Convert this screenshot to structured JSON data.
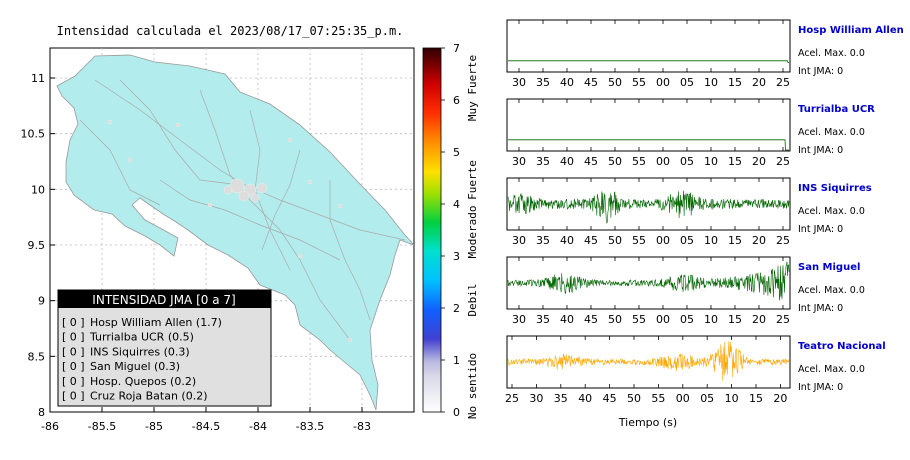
{
  "map": {
    "title": "Intensidad calculada el 2023/08/17_07:25:35_p.m.",
    "lon_ticks": [
      "-86",
      "-85.5",
      "-85",
      "-84.5",
      "-84",
      "-83.5",
      "-83"
    ],
    "lat_ticks": [
      "11",
      "10.5",
      "10",
      "9.5",
      "9",
      "8.5",
      "8"
    ],
    "land_color": "#b3ecec",
    "legend": {
      "title": "INTENSIDAD JMA [0 a 7]",
      "items": [
        {
          "level": "[ 0 ]",
          "label": "Hosp William Allen (1.7)"
        },
        {
          "level": "[ 0 ]",
          "label": "Turrialba UCR (0.5)"
        },
        {
          "level": "[ 0 ]",
          "label": "INS Siquirres (0.3)"
        },
        {
          "level": "[ 0 ]",
          "label": "San Miguel (0.3)"
        },
        {
          "level": "[ 0 ]",
          "label": "Hosp. Quepos (0.2)"
        },
        {
          "level": "[ 0 ]",
          "label": "Cruz Roja Batan (0.2)"
        }
      ]
    }
  },
  "colorbar": {
    "ticks": [
      "7",
      "6",
      "5",
      "4",
      "3",
      "2",
      "1",
      "0"
    ],
    "labels": [
      "Muy Fuerte",
      "Fuerte",
      "Moderado",
      "Debil",
      "No sentido"
    ]
  },
  "chart_data": [
    {
      "type": "line",
      "station": "Hosp William Allen",
      "acel_label": "Acel. Max. 0.0",
      "int_label": "Int JMA: 0",
      "x_ticks": [
        "30",
        "35",
        "40",
        "45",
        "50",
        "55",
        "00",
        "05",
        "10",
        "15",
        "20",
        "25"
      ],
      "color": "#006400",
      "amplitude": "flat"
    },
    {
      "type": "line",
      "station": "Turrialba UCR",
      "acel_label": "Acel. Max. 0.0",
      "int_label": "Int JMA: 0",
      "x_ticks": [
        "30",
        "35",
        "40",
        "45",
        "50",
        "55",
        "00",
        "05",
        "10",
        "15",
        "20",
        "25"
      ],
      "color": "#006400",
      "amplitude": "flat"
    },
    {
      "type": "line",
      "station": "INS Siquirres",
      "acel_label": "Acel. Max. 0.0",
      "int_label": "Int JMA: 0",
      "x_ticks": [
        "30",
        "35",
        "40",
        "45",
        "50",
        "55",
        "00",
        "05",
        "10",
        "15",
        "20",
        "25"
      ],
      "color": "#006400",
      "amplitude": "high"
    },
    {
      "type": "line",
      "station": "San Miguel",
      "acel_label": "Acel. Max. 0.0",
      "int_label": "Int JMA: 0",
      "x_ticks": [
        "30",
        "35",
        "40",
        "45",
        "50",
        "55",
        "00",
        "05",
        "10",
        "15",
        "20",
        "25"
      ],
      "color": "#006400",
      "amplitude": "medium"
    },
    {
      "type": "line",
      "station": "Teatro Nacional",
      "acel_label": "Acel. Max. 0.0",
      "int_label": "Int JMA: 0",
      "x_ticks": [
        "25",
        "30",
        "35",
        "40",
        "45",
        "50",
        "55",
        "00",
        "05",
        "10",
        "15",
        "20"
      ],
      "color": "#ffa500",
      "amplitude": "medium",
      "xlabel": "Tiempo (s)"
    }
  ]
}
